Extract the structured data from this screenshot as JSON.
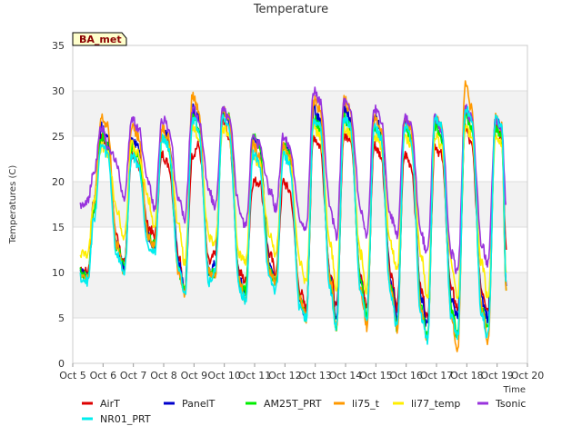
{
  "chart_data": {
    "type": "line",
    "title": "Temperature",
    "xlabel": "Time",
    "ylabel": "Temperatures (C)",
    "site_label": "BA_met",
    "xlim": [
      5,
      20
    ],
    "ylim": [
      0,
      35
    ],
    "x_ticks": [
      {
        "v": 5,
        "label": "Oct 5"
      },
      {
        "v": 6,
        "label": "Oct 6"
      },
      {
        "v": 7,
        "label": "Oct 7"
      },
      {
        "v": 8,
        "label": "Oct 8"
      },
      {
        "v": 9,
        "label": "Oct 9"
      },
      {
        "v": 10,
        "label": "Oct 10"
      },
      {
        "v": 11,
        "label": "Oct 11"
      },
      {
        "v": 12,
        "label": "Oct 12"
      },
      {
        "v": 13,
        "label": "Oct 13"
      },
      {
        "v": 14,
        "label": "Oct 14"
      },
      {
        "v": 15,
        "label": "Oct 15"
      },
      {
        "v": 16,
        "label": "Oct 16"
      },
      {
        "v": 17,
        "label": "Oct 17"
      },
      {
        "v": 18,
        "label": "Oct 18"
      },
      {
        "v": 19,
        "label": "Oct 19"
      },
      {
        "v": 20,
        "label": "Oct 20"
      }
    ],
    "y_ticks": [
      0,
      5,
      10,
      15,
      20,
      25,
      30,
      35
    ],
    "grid": true,
    "legend": "bottom",
    "series": [
      {
        "name": "AirT",
        "color": "#dd0000",
        "x": [
          5.25,
          5.5,
          5.7,
          5.95,
          6.15,
          6.45,
          6.7,
          6.95,
          7.15,
          7.5,
          7.7,
          7.95,
          8.15,
          8.5,
          8.7,
          8.95,
          9.15,
          9.5,
          9.7,
          9.95,
          10.15,
          10.5,
          10.7,
          10.95,
          11.15,
          11.5,
          11.7,
          11.95,
          12.15,
          12.5,
          12.7,
          12.95,
          13.15,
          13.5,
          13.7,
          13.95,
          14.15,
          14.5,
          14.7,
          14.95,
          15.15,
          15.5,
          15.7,
          15.95,
          16.15,
          16.5,
          16.7,
          16.95,
          17.15,
          17.5,
          17.7,
          17.95,
          18.15,
          18.5,
          18.7,
          18.95,
          19.15,
          19.3
        ],
        "y": [
          10.5,
          10,
          17,
          25,
          24,
          14,
          11,
          23,
          22,
          15,
          14,
          23,
          22,
          12,
          8,
          23,
          24,
          11,
          12,
          27,
          25,
          10,
          9,
          20,
          20,
          12,
          10,
          20,
          19,
          8,
          6,
          25,
          24,
          10,
          6,
          25,
          25,
          10,
          6,
          24,
          23,
          10,
          6,
          23,
          22,
          8,
          5,
          24,
          23,
          8,
          6,
          26,
          24,
          8,
          6,
          26,
          25,
          12.5
        ]
      },
      {
        "name": "PanelT",
        "color": "#0000cc",
        "x": [
          5.25,
          5.5,
          5.7,
          5.95,
          6.15,
          6.45,
          6.7,
          6.95,
          7.15,
          7.5,
          7.7,
          7.95,
          8.15,
          8.5,
          8.7,
          8.95,
          9.15,
          9.5,
          9.7,
          9.95,
          10.15,
          10.5,
          10.7,
          10.95,
          11.15,
          11.5,
          11.7,
          11.95,
          12.15,
          12.5,
          12.7,
          12.95,
          13.15,
          13.5,
          13.7,
          13.95,
          14.15,
          14.5,
          14.7,
          14.95,
          15.15,
          15.5,
          15.7,
          15.95,
          16.15,
          16.5,
          16.7,
          16.95,
          17.15,
          17.5,
          17.7,
          17.95,
          18.15,
          18.5,
          18.7,
          18.95,
          19.15,
          19.3
        ],
        "y": [
          10,
          9.5,
          18,
          26,
          25,
          13,
          10.5,
          25,
          24,
          14,
          13,
          26,
          25,
          11,
          8,
          28,
          27,
          10,
          11,
          28,
          27,
          9,
          8,
          25,
          24,
          11,
          9,
          24,
          23,
          7,
          5,
          28,
          27,
          9,
          5,
          28,
          27,
          9,
          5,
          27,
          26,
          9,
          5,
          27,
          26,
          7,
          4,
          27,
          26,
          7,
          5,
          28,
          27,
          7,
          5,
          27,
          26,
          8.5
        ]
      },
      {
        "name": "AM25T_PRT",
        "color": "#00ee00",
        "x": [
          5.25,
          5.5,
          5.7,
          5.95,
          6.15,
          6.45,
          6.7,
          6.95,
          7.15,
          7.5,
          7.7,
          7.95,
          8.15,
          8.5,
          8.7,
          8.95,
          9.15,
          9.5,
          9.7,
          9.95,
          10.15,
          10.5,
          10.7,
          10.95,
          11.15,
          11.5,
          11.7,
          11.95,
          12.15,
          12.5,
          12.7,
          12.95,
          13.15,
          13.5,
          13.7,
          13.95,
          14.15,
          14.5,
          14.7,
          14.95,
          15.15,
          15.5,
          15.7,
          15.95,
          16.15,
          16.5,
          16.7,
          16.95,
          17.15,
          17.5,
          17.7,
          17.95,
          18.15,
          18.5,
          18.7,
          18.95,
          19.15,
          19.3
        ],
        "y": [
          10,
          9.5,
          17,
          25,
          24,
          13,
          10.5,
          24,
          23,
          14,
          13,
          25,
          24,
          10,
          8,
          27,
          26,
          10,
          10,
          28,
          27,
          9,
          8,
          25,
          24,
          10,
          9,
          24,
          23,
          7,
          5,
          27,
          26,
          9,
          4,
          27,
          26,
          9,
          5,
          26,
          25,
          8,
          4,
          26,
          25,
          6,
          3,
          26,
          25,
          6,
          3,
          27,
          26,
          6,
          4,
          26,
          25,
          8
        ]
      },
      {
        "name": "li75_t",
        "color": "#ff9900",
        "x": [
          5.25,
          5.5,
          5.7,
          5.95,
          6.15,
          6.45,
          6.7,
          6.95,
          7.15,
          7.5,
          7.7,
          7.95,
          8.15,
          8.5,
          8.7,
          8.95,
          9.15,
          9.5,
          9.7,
          9.95,
          10.15,
          10.5,
          10.7,
          10.95,
          11.15,
          11.5,
          11.7,
          11.95,
          12.15,
          12.5,
          12.7,
          12.95,
          13.15,
          13.5,
          13.7,
          13.95,
          14.15,
          14.5,
          14.7,
          14.95,
          15.15,
          15.5,
          15.7,
          15.95,
          16.15,
          16.5,
          16.7,
          16.95,
          17.15,
          17.5,
          17.7,
          17.95,
          18.15,
          18.5,
          18.7,
          18.95,
          19.15,
          19.3
        ],
        "y": [
          10,
          9.5,
          18,
          27,
          26,
          13,
          10,
          26,
          25,
          14,
          13,
          26,
          25,
          10,
          7.5,
          29.5,
          28,
          10,
          10,
          28,
          27,
          9,
          7,
          24,
          23,
          10,
          9,
          24,
          23,
          7,
          5,
          29,
          28,
          9,
          4,
          29,
          28,
          8,
          4,
          27,
          26,
          8,
          3.5,
          27,
          26,
          6,
          2.5,
          27,
          26,
          5,
          1.5,
          31,
          28,
          6,
          2.5,
          27,
          26,
          8
        ]
      },
      {
        "name": "li77_temp",
        "color": "#ffee00",
        "x": [
          5.25,
          5.5,
          5.7,
          5.95,
          6.15,
          6.45,
          6.7,
          6.95,
          7.15,
          7.5,
          7.7,
          7.95,
          8.15,
          8.5,
          8.7,
          8.95,
          9.15,
          9.5,
          9.7,
          9.95,
          10.15,
          10.5,
          10.7,
          10.95,
          11.15,
          11.5,
          11.7,
          11.95,
          12.15,
          12.5,
          12.7,
          12.95,
          13.15,
          13.5,
          13.7,
          13.95,
          14.15,
          14.5,
          14.7,
          14.95,
          15.15,
          15.5,
          15.7,
          15.95,
          16.15,
          16.5,
          16.7,
          16.95,
          17.15,
          17.5,
          17.7,
          17.95,
          18.15,
          18.5,
          18.7,
          18.95,
          19.15,
          19.3
        ],
        "y": [
          12,
          12,
          18,
          24,
          23,
          17,
          14,
          24,
          23,
          18,
          15,
          25,
          24,
          15,
          11,
          26,
          25,
          14,
          13,
          26,
          25,
          12,
          11,
          23,
          22,
          14,
          12,
          23,
          22,
          11,
          9,
          26,
          25,
          13,
          8,
          26,
          25,
          12,
          8,
          25,
          24,
          13,
          10,
          25,
          24,
          12,
          7,
          25,
          24,
          11,
          7,
          26,
          25,
          11,
          7,
          25,
          24,
          10
        ]
      },
      {
        "name": "Tsonic",
        "color": "#9933dd",
        "x": [
          5.25,
          5.5,
          5.7,
          5.95,
          6.15,
          6.45,
          6.7,
          6.95,
          7.15,
          7.5,
          7.7,
          7.95,
          8.15,
          8.5,
          8.7,
          8.95,
          9.15,
          9.5,
          9.7,
          9.95,
          10.15,
          10.5,
          10.7,
          10.95,
          11.15,
          11.5,
          11.7,
          11.95,
          12.15,
          12.5,
          12.7,
          12.95,
          13.15,
          13.5,
          13.7,
          13.95,
          14.15,
          14.5,
          14.7,
          14.95,
          15.15,
          15.5,
          15.7,
          15.95,
          16.15,
          16.5,
          16.7,
          16.95,
          17.15,
          17.5,
          17.7,
          17.95,
          18.15,
          18.5,
          18.7,
          18.95,
          19.15,
          19.3
        ],
        "y": [
          17.5,
          18,
          21,
          26,
          24,
          22,
          18,
          27,
          26,
          20,
          17,
          27,
          26,
          18,
          16,
          28,
          27,
          19,
          17,
          28,
          27,
          17,
          15,
          25,
          24,
          19,
          17,
          25,
          24,
          16,
          15,
          30,
          29,
          17,
          14,
          29,
          28,
          17,
          14,
          28,
          27,
          16,
          14,
          27,
          26,
          14,
          12,
          27,
          26,
          12,
          10,
          28,
          27,
          13,
          11,
          27,
          26,
          17.5
        ]
      },
      {
        "name": "NR01_PRT",
        "color": "#00eeee",
        "x": [
          5.25,
          5.5,
          5.7,
          5.95,
          6.15,
          6.45,
          6.7,
          6.95,
          7.15,
          7.5,
          7.7,
          7.95,
          8.15,
          8.5,
          8.7,
          8.95,
          9.15,
          9.5,
          9.7,
          9.95,
          10.15,
          10.5,
          10.7,
          10.95,
          11.15,
          11.5,
          11.7,
          11.95,
          12.15,
          12.5,
          12.7,
          12.95,
          13.15,
          13.5,
          13.7,
          13.95,
          14.15,
          14.5,
          14.7,
          14.95,
          15.15,
          15.5,
          15.7,
          15.95,
          16.15,
          16.5,
          16.7,
          16.95,
          17.15,
          17.5,
          17.7,
          17.95,
          18.15,
          18.5,
          18.7,
          18.95,
          19.15,
          19.3
        ],
        "y": [
          9.5,
          9,
          16,
          24,
          23,
          12,
          10,
          23,
          22,
          13,
          12,
          25,
          24,
          10,
          7.5,
          27,
          26,
          9,
          10,
          27,
          26,
          8,
          7,
          23,
          22,
          9,
          8,
          23,
          22,
          6,
          5,
          27,
          26,
          8,
          4,
          27,
          26,
          8,
          5,
          26,
          25,
          7,
          4,
          26,
          25,
          5,
          2.5,
          27,
          26,
          5,
          3,
          28,
          27,
          5,
          3,
          27,
          26,
          9
        ]
      }
    ]
  }
}
